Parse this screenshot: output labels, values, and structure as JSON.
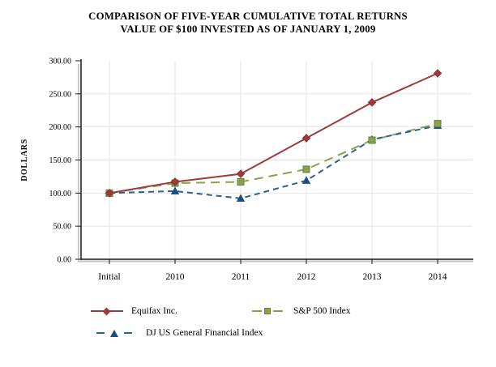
{
  "title": {
    "line1": "COMPARISON OF FIVE-YEAR CUMULATIVE TOTAL RETURNS",
    "line2": "VALUE OF $100 INVESTED AS OF JANUARY 1, 2009"
  },
  "chart_data": {
    "type": "line",
    "title": "COMPARISON OF FIVE-YEAR CUMULATIVE TOTAL RETURNS",
    "subtitle": "VALUE OF $100 INVESTED AS OF JANUARY 1, 2009",
    "xlabel": "",
    "ylabel": "DOLLARS",
    "categories": [
      "Initial",
      "2010",
      "2011",
      "2012",
      "2013",
      "2014"
    ],
    "ylim": [
      0,
      300
    ],
    "y_tick_interval": 50,
    "y_tick_labels": [
      "0.00",
      "50.00",
      "100.00",
      "150.00",
      "200.00",
      "250.00",
      "300.00"
    ],
    "grid": true,
    "legend_position": "bottom",
    "series": [
      {
        "name": "Equifax Inc.",
        "values": [
          100,
          117,
          129,
          183,
          237,
          281
        ],
        "color": "#9E3A3A",
        "marker": "diamond",
        "marker_fill": "#9E3A3A",
        "marker_stroke": "#7E2F2F",
        "line_style": "solid"
      },
      {
        "name": "S&P 500 Index",
        "values": [
          100,
          115,
          117,
          136,
          180,
          205
        ],
        "color": "#8BA24D",
        "marker": "square",
        "marker_fill": "#8BA24D",
        "marker_stroke": "#66803A",
        "line_style": "long-dash"
      },
      {
        "name": "DJ US General Financial Index",
        "values": [
          100,
          103,
          92,
          119,
          181,
          202
        ],
        "color": "#2A618F",
        "marker": "triangle",
        "marker_fill": "#1C4E7C",
        "marker_stroke": "#1C4E7C",
        "line_style": "dash"
      }
    ]
  }
}
